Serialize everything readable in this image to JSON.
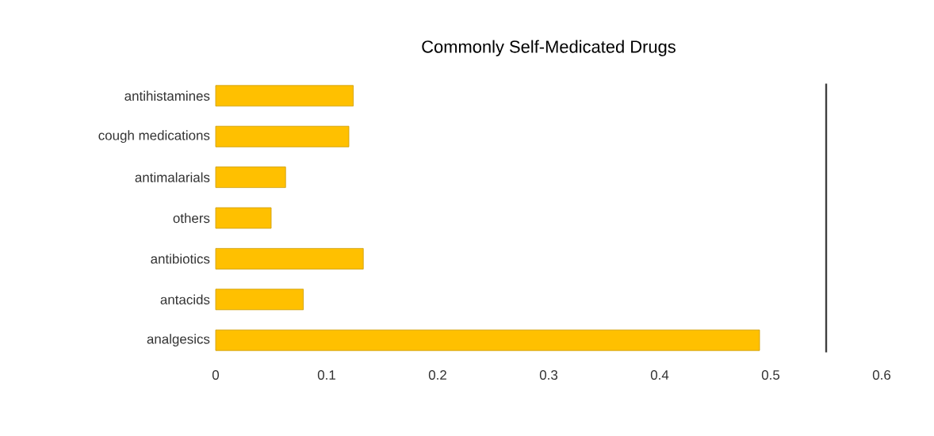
{
  "chart_data": {
    "type": "bar",
    "orientation": "horizontal",
    "title": "Commonly Self-Medicated Drugs",
    "categories": [
      "antihistamines",
      "cough medications",
      "antimalarials",
      "others",
      "antibiotics",
      "antacids",
      "analgesics"
    ],
    "values": [
      0.124,
      0.12,
      0.063,
      0.05,
      0.133,
      0.079,
      0.49
    ],
    "color": "#ffc000",
    "xlim": [
      0,
      0.6
    ],
    "xticks": [
      0,
      0.1,
      0.2,
      0.3,
      0.4,
      0.5,
      0.6
    ],
    "ref_lines": [
      {
        "axis": "x",
        "value": 0.55,
        "color": "#404040"
      }
    ],
    "grid": false
  }
}
